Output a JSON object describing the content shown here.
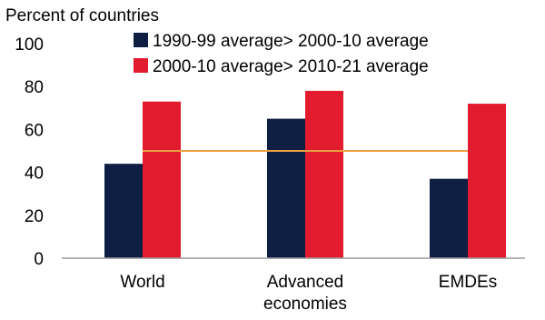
{
  "chart_data": {
    "type": "bar",
    "title": "",
    "ylabel": "Percent of countries",
    "xlabel": "",
    "ylim": [
      0,
      100
    ],
    "yticks": [
      "0",
      "20",
      "40",
      "60",
      "80",
      "100"
    ],
    "categories": [
      [
        "World"
      ],
      [
        "Advanced",
        "economies"
      ],
      [
        "EMDEs"
      ]
    ],
    "series": [
      {
        "name": "1990-99 average> 2000-10 average",
        "color": "#0e1f43",
        "values": [
          44,
          65,
          37
        ]
      },
      {
        "name": "2000-10 average> 2010-21 average",
        "color": "#e31b2e",
        "values": [
          73,
          78,
          72
        ]
      }
    ],
    "reference_line": {
      "value": 50,
      "color": "#f0a040"
    },
    "legend_position": "top",
    "grid": false
  }
}
